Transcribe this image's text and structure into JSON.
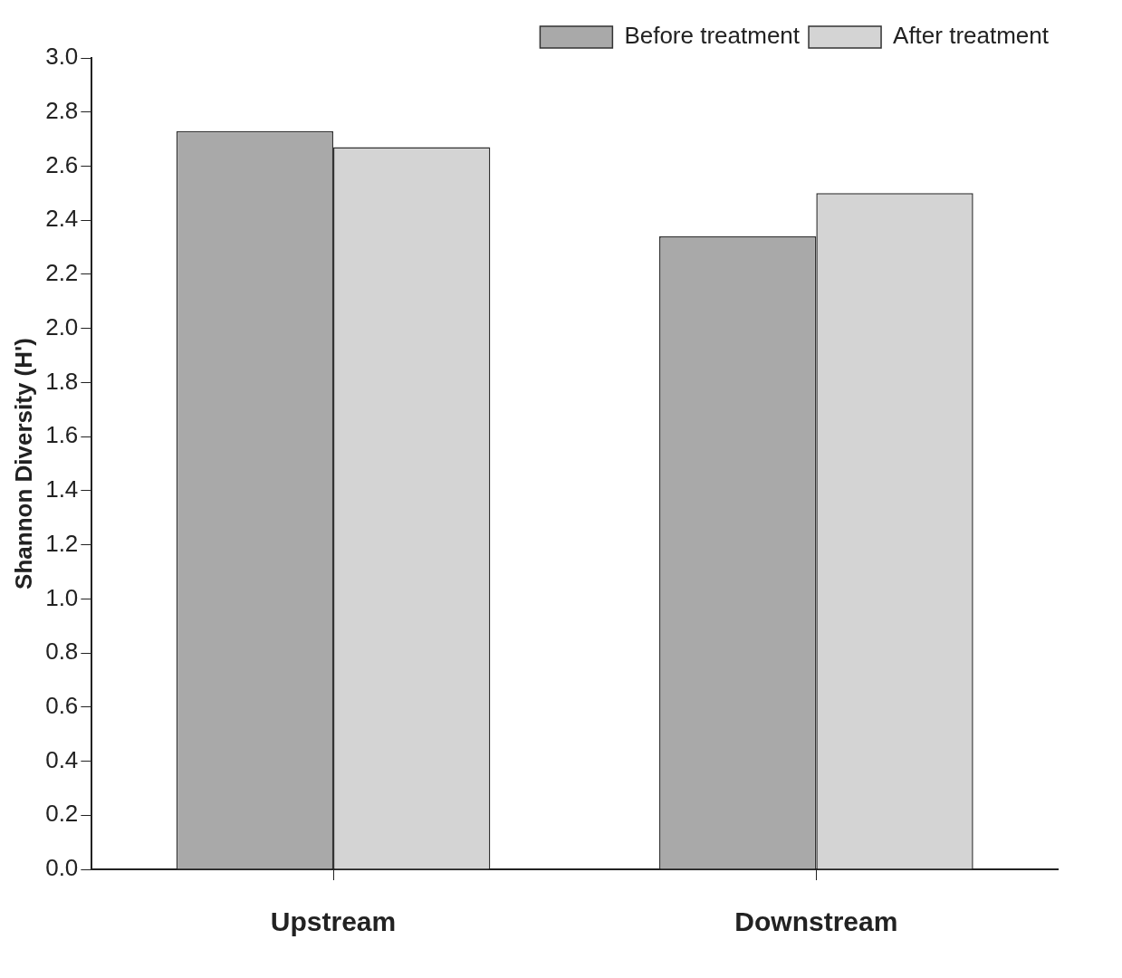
{
  "chart_data": {
    "type": "bar",
    "ylabel": "Shannon Diversity (H')",
    "categories": [
      "Upstream",
      "Downstream"
    ],
    "series": [
      {
        "name": "Before treatment",
        "color": "#a9a9a9",
        "values": [
          2.73,
          2.34
        ]
      },
      {
        "name": "After treatment",
        "color": "#d4d4d4",
        "values": [
          2.67,
          2.5
        ]
      }
    ],
    "ylim": [
      0,
      3
    ],
    "yticks": [
      {
        "value": 0,
        "label": "0.0"
      },
      {
        "value": 0.2,
        "label": "0.2"
      },
      {
        "value": 0.4,
        "label": "0.4"
      },
      {
        "value": 0.6,
        "label": "0.6"
      },
      {
        "value": 0.8,
        "label": "0.8"
      },
      {
        "value": 1,
        "label": "1.0"
      },
      {
        "value": 1.2,
        "label": "1.2"
      },
      {
        "value": 1.4,
        "label": "1.4"
      },
      {
        "value": 1.6,
        "label": "1.6"
      },
      {
        "value": 1.8,
        "label": "1.8"
      },
      {
        "value": 2,
        "label": "2.0"
      },
      {
        "value": 2.2,
        "label": "2.2"
      },
      {
        "value": 2.4,
        "label": "2.4"
      },
      {
        "value": 2.6,
        "label": "2.6"
      },
      {
        "value": 2.8,
        "label": "2.8"
      },
      {
        "value": 3,
        "label": "3.0"
      }
    ],
    "grid": false,
    "legend": "top right"
  }
}
